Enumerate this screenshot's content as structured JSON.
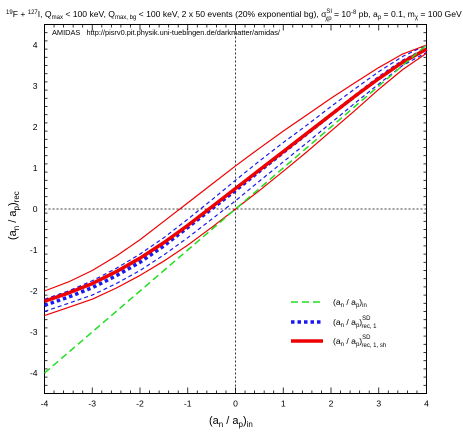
{
  "chart_data": {
    "type": "line",
    "title": "¹⁹F + ¹²⁷I, Q_max < 100 keV, Q_max, bg < 100 keV, 2 x 50 events (20% exponential bg), σ_χp^SI = 10⁻⁸ pb, a_p = 0.1, m_χ = 100 GeV",
    "annotation": "AMIDAS   http://pisrv0.pit.physik.uni-tuebingen.de/darkmatter/amidas/",
    "xlabel": "(a_n / a_p)_in",
    "ylabel": "(a_n / a_p)_rec",
    "xlim": [
      -4,
      4
    ],
    "ylim": [
      -4.5,
      4.5
    ],
    "xticks": [
      "-4",
      "-3",
      "-2",
      "-1",
      "0",
      "1",
      "2",
      "3",
      "4"
    ],
    "yticks": [
      "-4",
      "-3",
      "-2",
      "-1",
      "0",
      "1",
      "2",
      "3",
      "4"
    ],
    "reference_lines": {
      "x": 0,
      "y": 0,
      "style": "dotted"
    },
    "legend_position": "bottom-right",
    "legend": [
      {
        "label": "(a_n / a_p)_in",
        "color": "#22dd22",
        "dash": "dashed"
      },
      {
        "label": "(a_n / a_p)_rec, 1^SD",
        "color": "#1a1aee",
        "dash": "dotted"
      },
      {
        "label": "(a_n / a_p)_rec, 1, sh^SD",
        "color": "#ee0000",
        "dash": "solid"
      }
    ],
    "x": [
      -4,
      -3.5,
      -3,
      -2.5,
      -2,
      -1.5,
      -1,
      -0.5,
      0,
      0.5,
      1,
      1.5,
      2,
      2.5,
      3,
      3.5,
      4
    ],
    "series": [
      {
        "name": "(a_n / a_p)_in",
        "role": "input",
        "color": "#22dd22",
        "style": "dashed",
        "width": 1.5,
        "values": [
          -4.0,
          -3.5,
          -3.0,
          -2.5,
          -2.0,
          -1.5,
          -1.0,
          -0.5,
          0.0,
          0.5,
          1.0,
          1.5,
          2.0,
          2.5,
          3.0,
          3.5,
          4.0
        ]
      },
      {
        "name": "(a_n / a_p)_rec, 1^SD",
        "role": "upper",
        "color": "#1a1aee",
        "style": "dashed",
        "width": 1.2,
        "values": [
          -2.2,
          -2.0,
          -1.75,
          -1.45,
          -1.1,
          -0.7,
          -0.25,
          0.22,
          0.7,
          1.17,
          1.62,
          2.05,
          2.5,
          2.93,
          3.35,
          3.72,
          4.0
        ]
      },
      {
        "name": "(a_n / a_p)_rec, 1^SD",
        "role": "center",
        "color": "#1a1aee",
        "style": "dotted",
        "width": 3.5,
        "values": [
          -2.35,
          -2.15,
          -1.92,
          -1.63,
          -1.3,
          -0.9,
          -0.45,
          0.0,
          0.45,
          0.92,
          1.38,
          1.84,
          2.3,
          2.75,
          3.2,
          3.6,
          3.9
        ]
      },
      {
        "name": "(a_n / a_p)_rec, 1^SD",
        "role": "lower",
        "color": "#1a1aee",
        "style": "dashed",
        "width": 1.2,
        "values": [
          -2.5,
          -2.3,
          -2.1,
          -1.82,
          -1.5,
          -1.12,
          -0.7,
          -0.25,
          0.2,
          0.68,
          1.15,
          1.62,
          2.1,
          2.58,
          3.05,
          3.5,
          3.82
        ]
      },
      {
        "name": "(a_n / a_p)_rec, 1, sh^SD",
        "role": "upper",
        "color": "#ee0000",
        "style": "solid",
        "width": 1.2,
        "values": [
          -2.0,
          -1.78,
          -1.5,
          -1.15,
          -0.75,
          -0.3,
          0.15,
          0.6,
          1.05,
          1.48,
          1.9,
          2.3,
          2.7,
          3.08,
          3.45,
          3.78,
          4.0
        ]
      },
      {
        "name": "(a_n / a_p)_rec, 1, sh^SD",
        "role": "center",
        "color": "#ee0000",
        "style": "solid",
        "width": 3.5,
        "values": [
          -2.25,
          -2.05,
          -1.82,
          -1.53,
          -1.2,
          -0.82,
          -0.4,
          0.05,
          0.5,
          0.95,
          1.4,
          1.85,
          2.3,
          2.75,
          3.18,
          3.58,
          3.9
        ]
      },
      {
        "name": "(a_n / a_p)_rec, 1, sh^SD",
        "role": "lower",
        "color": "#ee0000",
        "style": "solid",
        "width": 1.2,
        "values": [
          -2.6,
          -2.4,
          -2.2,
          -1.93,
          -1.62,
          -1.27,
          -0.88,
          -0.45,
          0.0,
          0.45,
          0.92,
          1.4,
          1.9,
          2.4,
          2.92,
          3.4,
          3.8
        ]
      }
    ]
  }
}
